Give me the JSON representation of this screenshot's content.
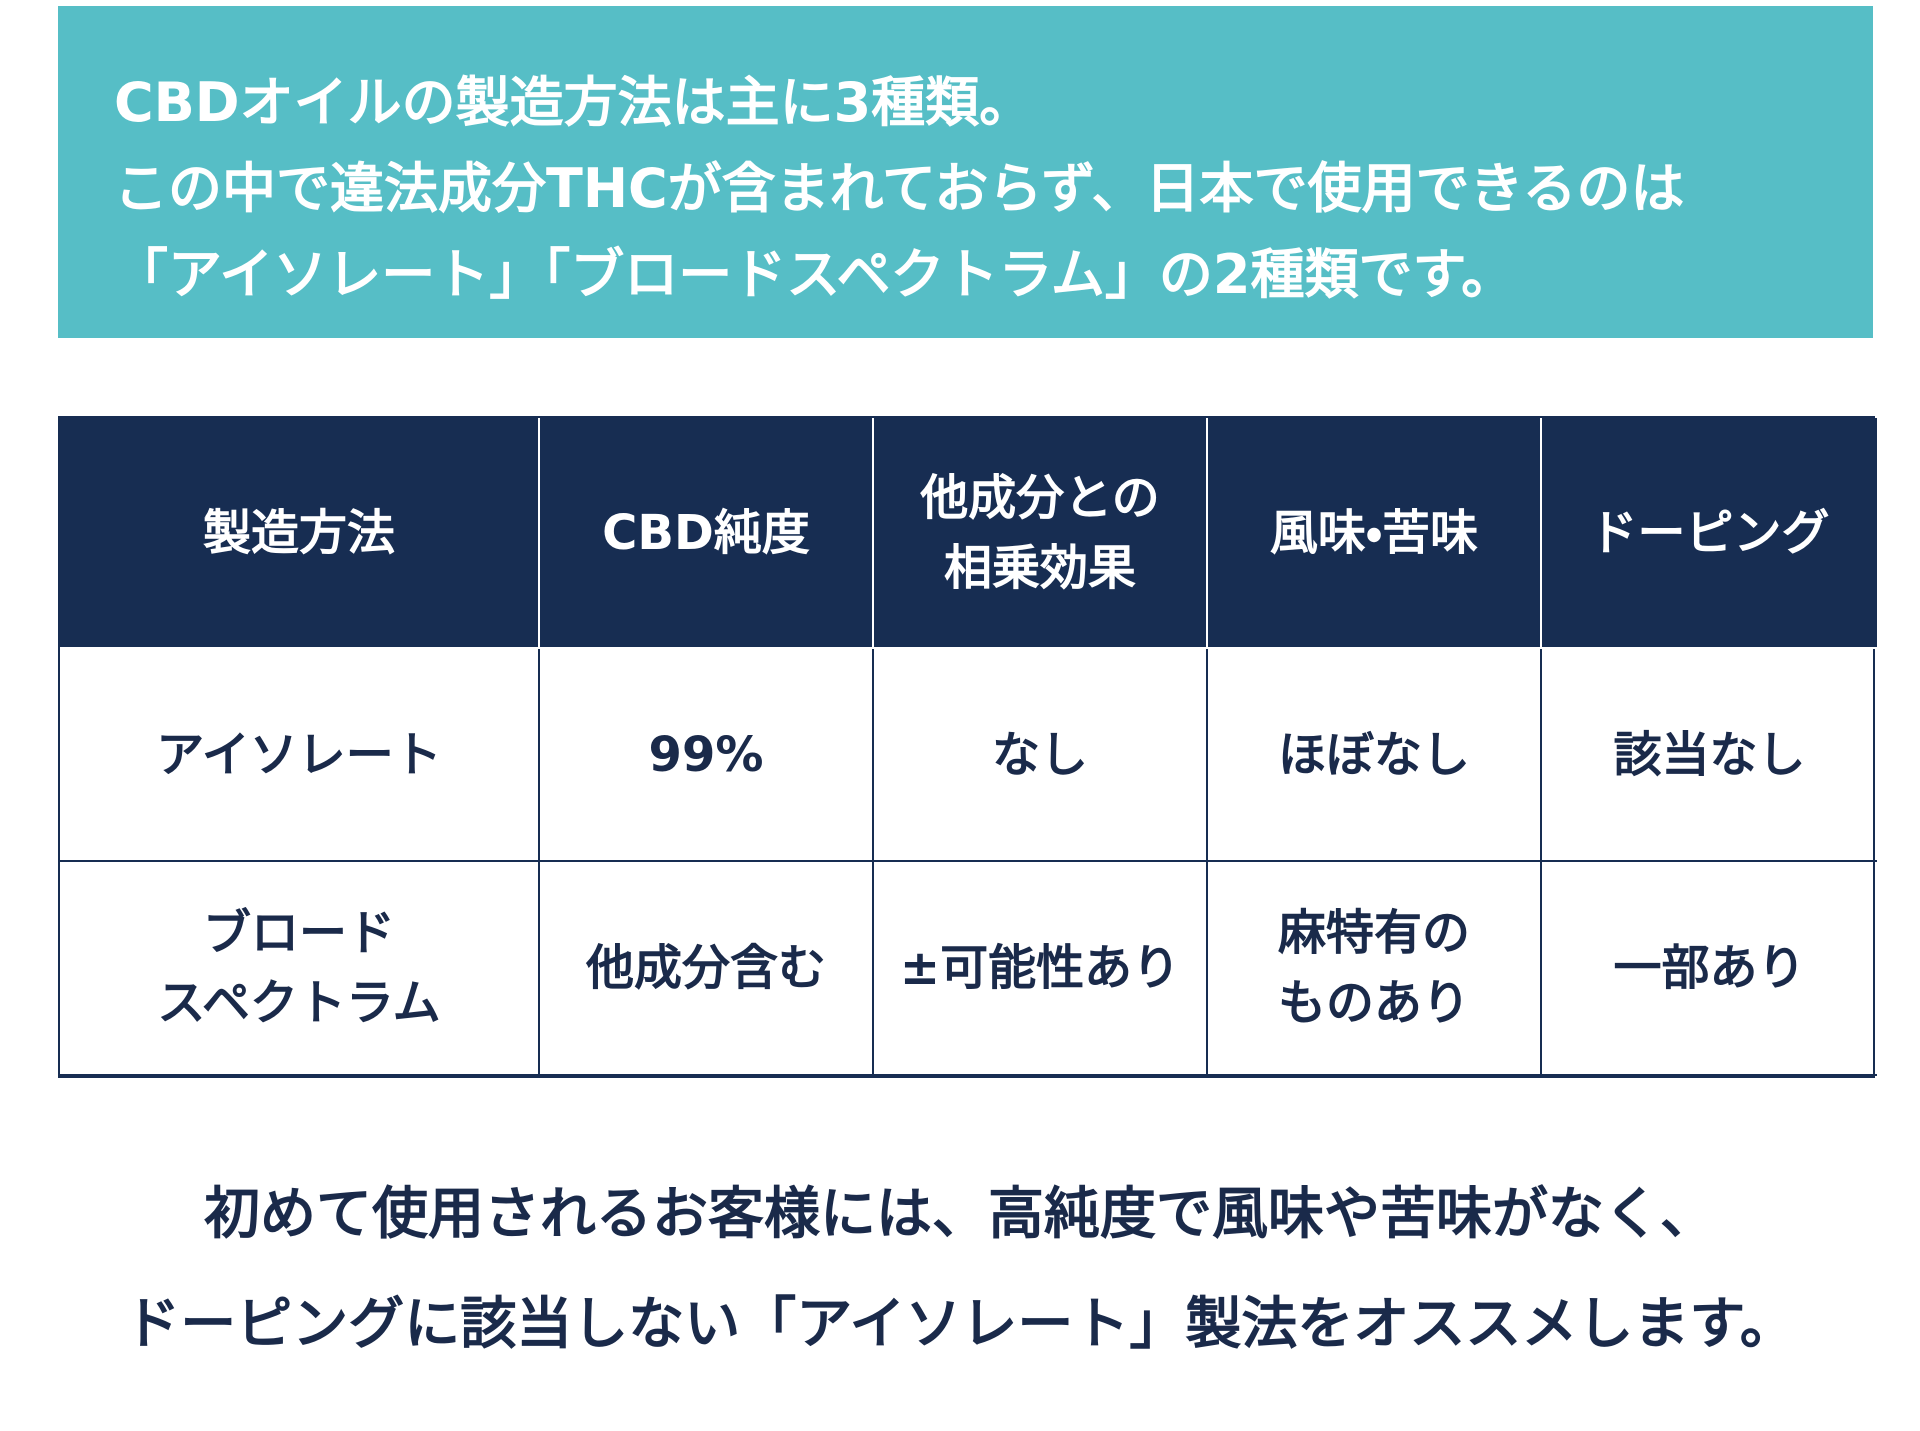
{
  "intro": {
    "lines": [
      "CBDオイルの製造方法は主に3種類。",
      "この中で違法成分THCが含まれておらず、日本で使用できるのは",
      "「アイソレート」「ブロードスペクトラム」の2種類です。"
    ]
  },
  "table": {
    "header": [
      [
        "製造方法"
      ],
      [
        "CBD純度"
      ],
      [
        "他成分との",
        "相乗効果"
      ],
      [
        "風味・苦味"
      ],
      [
        "ドーピング"
      ]
    ],
    "rows": [
      [
        [
          "アイソレート"
        ],
        [
          "99%"
        ],
        [
          "なし"
        ],
        [
          "ほぼなし"
        ],
        [
          "該当なし"
        ]
      ],
      [
        [
          "ブロード",
          "スペクトラム"
        ],
        [
          "他成分含む"
        ],
        [
          "±可能性あり"
        ],
        [
          "麻特有の",
          "ものあり"
        ],
        [
          "一部あり"
        ]
      ]
    ]
  },
  "footer": {
    "lines": [
      "初めて使用されるお客様には、高純度で風味や苦味がなく、",
      "ドーピングに該当しない「アイソレート」製法をオススメします。"
    ]
  }
}
